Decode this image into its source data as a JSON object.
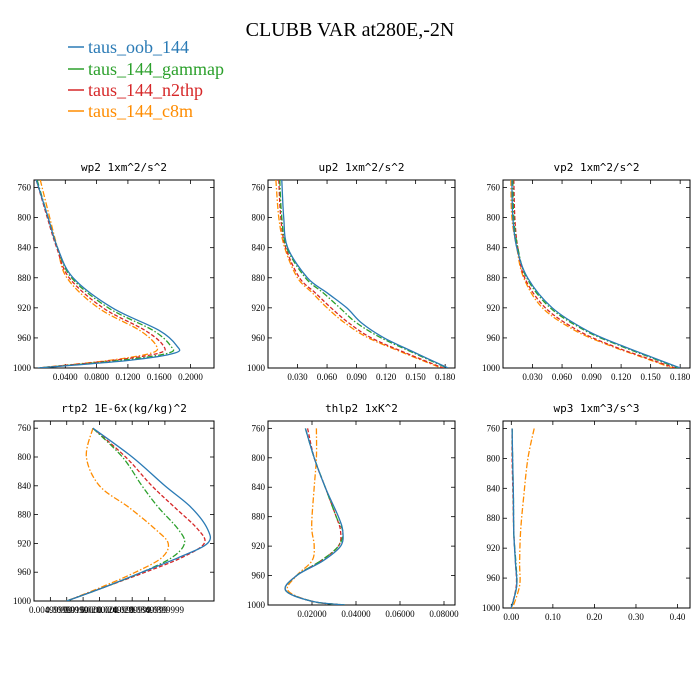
{
  "chart_data": {
    "type": "line",
    "title": "CLUBB VAR at280E,-2N",
    "legend": {
      "position": "top-left",
      "entries": [
        {
          "name": "taus_oob_144",
          "color": "#2a7ab5",
          "dash": "solid"
        },
        {
          "name": "taus_144_gammap",
          "color": "#2ca02c",
          "dash": "dashdot"
        },
        {
          "name": "taus_144_n2thp",
          "color": "#d62728",
          "dash": "dashed"
        },
        {
          "name": "taus_144_c8m",
          "color": "#ff8c00",
          "dash": "dashdot"
        }
      ]
    },
    "ylim": [
      1000,
      750
    ],
    "yticks": [
      {
        "v": 760,
        "label": "760"
      },
      {
        "v": 800,
        "label": "800"
      },
      {
        "v": 840,
        "label": "840"
      },
      {
        "v": 880,
        "label": "880"
      },
      {
        "v": 920,
        "label": "920"
      },
      {
        "v": 960,
        "label": "960"
      },
      {
        "v": 1000,
        "label": "1000"
      }
    ],
    "panels": [
      {
        "title": "wp2  1xm^2/s^2",
        "xlim": [
          0,
          0.23
        ],
        "xticks": [
          {
            "v": 0.04,
            "label": "0.0400"
          },
          {
            "v": 0.08,
            "label": "0.0800"
          },
          {
            "v": 0.12,
            "label": "0.1200"
          },
          {
            "v": 0.16,
            "label": "0.1600"
          },
          {
            "v": 0.2,
            "label": "0.2000"
          }
        ],
        "y": [
          750,
          800,
          840,
          880,
          920,
          950,
          970,
          980,
          990,
          1000
        ],
        "series": [
          {
            "name": "taus_oob_144",
            "values": [
              0.003,
              0.018,
              0.03,
              0.05,
              0.1,
              0.16,
              0.182,
              0.18,
              0.12,
              0.005
            ]
          },
          {
            "name": "taus_144_gammap",
            "values": [
              0.004,
              0.018,
              0.03,
              0.048,
              0.095,
              0.152,
              0.174,
              0.172,
              0.11,
              0.005
            ]
          },
          {
            "name": "taus_144_n2thp",
            "values": [
              0.003,
              0.017,
              0.029,
              0.045,
              0.088,
              0.142,
              0.165,
              0.16,
              0.1,
              0.005
            ]
          },
          {
            "name": "taus_144_c8m",
            "values": [
              0.008,
              0.02,
              0.03,
              0.042,
              0.082,
              0.135,
              0.156,
              0.15,
              0.095,
              0.005
            ]
          }
        ]
      },
      {
        "title": "up2  1xm^2/s^2",
        "xlim": [
          0,
          0.19
        ],
        "xticks": [
          {
            "v": 0.03,
            "label": "0.030"
          },
          {
            "v": 0.06,
            "label": "0.060"
          },
          {
            "v": 0.09,
            "label": "0.090"
          },
          {
            "v": 0.12,
            "label": "0.120"
          },
          {
            "v": 0.15,
            "label": "0.150"
          },
          {
            "v": 0.18,
            "label": "0.180"
          }
        ],
        "y": [
          750,
          800,
          840,
          880,
          900,
          920,
          940,
          960,
          980,
          1000
        ],
        "series": [
          {
            "name": "taus_oob_144",
            "values": [
              0.014,
              0.016,
              0.02,
              0.04,
              0.06,
              0.08,
              0.095,
              0.118,
              0.15,
              0.183
            ]
          },
          {
            "name": "taus_144_gammap",
            "values": [
              0.012,
              0.014,
              0.019,
              0.038,
              0.056,
              0.073,
              0.09,
              0.115,
              0.148,
              0.182
            ]
          },
          {
            "name": "taus_144_n2thp",
            "values": [
              0.011,
              0.013,
              0.018,
              0.032,
              0.048,
              0.064,
              0.082,
              0.105,
              0.14,
              0.178
            ]
          },
          {
            "name": "taus_144_c8m",
            "values": [
              0.008,
              0.011,
              0.017,
              0.03,
              0.045,
              0.06,
              0.078,
              0.102,
              0.138,
              0.176
            ]
          }
        ]
      },
      {
        "title": "vp2  1xm^2/s^2",
        "xlim": [
          0,
          0.19
        ],
        "xticks": [
          {
            "v": 0.03,
            "label": "0.030"
          },
          {
            "v": 0.06,
            "label": "0.060"
          },
          {
            "v": 0.09,
            "label": "0.090"
          },
          {
            "v": 0.12,
            "label": "0.120"
          },
          {
            "v": 0.15,
            "label": "0.150"
          },
          {
            "v": 0.18,
            "label": "0.180"
          }
        ],
        "y": [
          750,
          800,
          840,
          880,
          920,
          950,
          970,
          985,
          1000
        ],
        "series": [
          {
            "name": "taus_oob_144",
            "values": [
              0.009,
              0.01,
              0.014,
              0.025,
              0.05,
              0.085,
              0.12,
              0.15,
              0.18
            ]
          },
          {
            "name": "taus_144_gammap",
            "values": [
              0.01,
              0.011,
              0.015,
              0.024,
              0.048,
              0.083,
              0.118,
              0.148,
              0.178
            ]
          },
          {
            "name": "taus_144_n2thp",
            "values": [
              0.011,
              0.012,
              0.015,
              0.022,
              0.043,
              0.076,
              0.11,
              0.142,
              0.175
            ]
          },
          {
            "name": "taus_144_c8m",
            "values": [
              0.008,
              0.009,
              0.014,
              0.021,
              0.04,
              0.073,
              0.108,
              0.14,
              0.172
            ]
          }
        ]
      },
      {
        "title": "rtp2  1E-6x(kg/kg)^2",
        "xlim": [
          0,
          0.055
        ],
        "xticks": [
          {
            "v": 0.005,
            "label": "0.00499999"
          },
          {
            "v": 0.01,
            "label": "0.00999999"
          },
          {
            "v": 0.015,
            "label": "0.0150000"
          },
          {
            "v": 0.02,
            "label": "0.0200000"
          },
          {
            "v": 0.025,
            "label": "0.0249999"
          },
          {
            "v": 0.03,
            "label": "0.0299999"
          },
          {
            "v": 0.035,
            "label": "0.0349999"
          },
          {
            "v": 0.04,
            "label": "0.0399999"
          }
        ],
        "y": [
          760,
          800,
          840,
          870,
          900,
          920,
          940,
          960,
          980,
          1000
        ],
        "series": [
          {
            "name": "taus_oob_144",
            "values": [
              0.018,
              0.03,
              0.04,
              0.048,
              0.053,
              0.053,
              0.044,
              0.033,
              0.022,
              0.01
            ]
          },
          {
            "name": "taus_144_gammap",
            "values": [
              0.018,
              0.027,
              0.033,
              0.038,
              0.044,
              0.046,
              0.042,
              0.033,
              0.022,
              0.01
            ]
          },
          {
            "name": "taus_144_n2thp",
            "values": [
              0.018,
              0.028,
              0.036,
              0.043,
              0.05,
              0.052,
              0.045,
              0.034,
              0.022,
              0.01
            ]
          },
          {
            "name": "taus_144_c8m",
            "values": [
              0.018,
              0.016,
              0.02,
              0.029,
              0.037,
              0.041,
              0.039,
              0.031,
              0.021,
              0.01
            ]
          }
        ]
      },
      {
        "title": "thlp2  1xK^2",
        "xlim": [
          0,
          0.085
        ],
        "xticks": [
          {
            "v": 0.02,
            "label": "0.02000"
          },
          {
            "v": 0.04,
            "label": "0.04000"
          },
          {
            "v": 0.06,
            "label": "0.06000"
          },
          {
            "v": 0.08,
            "label": "0.08000"
          }
        ],
        "y": [
          760,
          800,
          840,
          880,
          900,
          920,
          940,
          960,
          980,
          995,
          1000
        ],
        "series": [
          {
            "name": "taus_oob_144",
            "values": [
              0.017,
              0.021,
              0.026,
              0.032,
              0.034,
              0.033,
              0.025,
              0.013,
              0.008,
              0.02,
              0.035
            ]
          },
          {
            "name": "taus_144_gammap",
            "values": [
              0.017,
              0.021,
              0.026,
              0.031,
              0.034,
              0.032,
              0.024,
              0.013,
              0.008,
              0.02,
              0.035
            ]
          },
          {
            "name": "taus_144_n2thp",
            "values": [
              0.018,
              0.021,
              0.026,
              0.031,
              0.033,
              0.032,
              0.024,
              0.013,
              0.008,
              0.02,
              0.035
            ]
          },
          {
            "name": "taus_144_c8m",
            "values": [
              0.022,
              0.022,
              0.021,
              0.02,
              0.02,
              0.021,
              0.02,
              0.013,
              0.009,
              0.02,
              0.035
            ]
          }
        ]
      },
      {
        "title": "wp3  1xm^3/s^3",
        "xlim": [
          -0.02,
          0.43
        ],
        "xticks": [
          {
            "v": 0,
            "label": "0.00"
          },
          {
            "v": 0.1,
            "label": "0.10"
          },
          {
            "v": 0.2,
            "label": "0.20"
          },
          {
            "v": 0.3,
            "label": "0.30"
          },
          {
            "v": 0.4,
            "label": "0.40"
          }
        ],
        "y": [
          760,
          800,
          850,
          900,
          940,
          970,
          1000
        ],
        "series": [
          {
            "name": "taus_oob_144",
            "values": [
              0.002,
              0.003,
              0.005,
              0.006,
              0.01,
              0.013,
              0.0
            ]
          },
          {
            "name": "taus_144_gammap",
            "values": [
              0.002,
              0.003,
              0.005,
              0.006,
              0.011,
              0.013,
              0.0
            ]
          },
          {
            "name": "taus_144_n2thp",
            "values": [
              0.002,
              0.002,
              0.004,
              0.006,
              0.01,
              0.012,
              0.0
            ]
          },
          {
            "name": "taus_144_c8m",
            "values": [
              0.055,
              0.04,
              0.03,
              0.022,
              0.02,
              0.02,
              0.003
            ]
          }
        ]
      }
    ]
  }
}
